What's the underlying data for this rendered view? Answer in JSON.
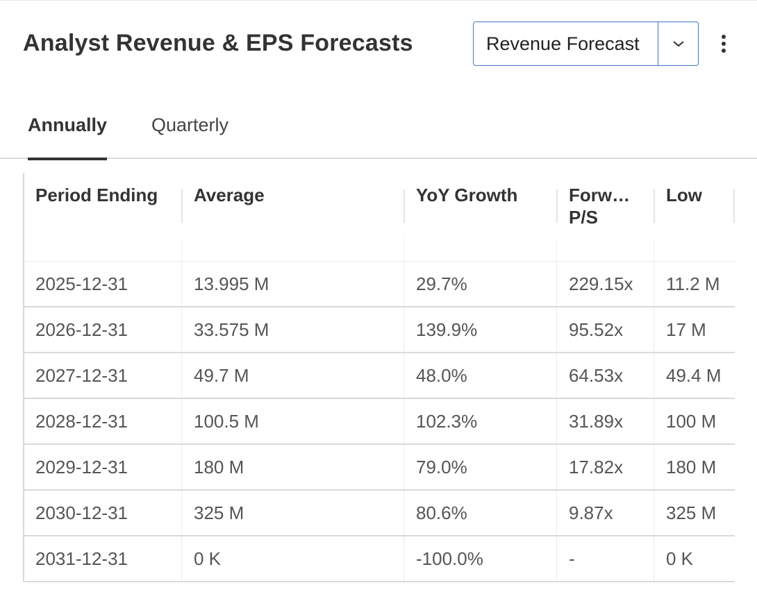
{
  "header": {
    "title": "Analyst Revenue & EPS Forecasts",
    "dropdown_value": "Revenue Forecast",
    "more_icon": "vertical-dots-icon",
    "chevron_icon": "chevron-down-icon"
  },
  "tabs": [
    {
      "label": "Annually",
      "active": true
    },
    {
      "label": "Quarterly",
      "active": false
    }
  ],
  "table": {
    "columns": [
      "Period Ending",
      "Average",
      "YoY Growth",
      "Forw…",
      "Low"
    ],
    "columns_line2": {
      "forward": "P/S"
    },
    "rows": [
      {
        "period": "2025-12-31",
        "average": "13.995 M",
        "yoy": "29.7%",
        "forward_ps": "229.15x",
        "low": "11.2 M"
      },
      {
        "period": "2026-12-31",
        "average": "33.575 M",
        "yoy": "139.9%",
        "forward_ps": "95.52x",
        "low": "17 M"
      },
      {
        "period": "2027-12-31",
        "average": "49.7 M",
        "yoy": "48.0%",
        "forward_ps": "64.53x",
        "low": "49.4 M"
      },
      {
        "period": "2028-12-31",
        "average": "100.5 M",
        "yoy": "102.3%",
        "forward_ps": "31.89x",
        "low": "100 M"
      },
      {
        "period": "2029-12-31",
        "average": "180 M",
        "yoy": "79.0%",
        "forward_ps": "17.82x",
        "low": "180 M"
      },
      {
        "period": "2030-12-31",
        "average": "325 M",
        "yoy": "80.6%",
        "forward_ps": "9.87x",
        "low": "325 M"
      },
      {
        "period": "2031-12-31",
        "average": "0 K",
        "yoy": "-100.0%",
        "forward_ps": "-",
        "low": "0 K"
      }
    ]
  },
  "colors": {
    "accent_border": "#3a78c9",
    "text_primary": "#333333",
    "text_cell": "#555555"
  }
}
